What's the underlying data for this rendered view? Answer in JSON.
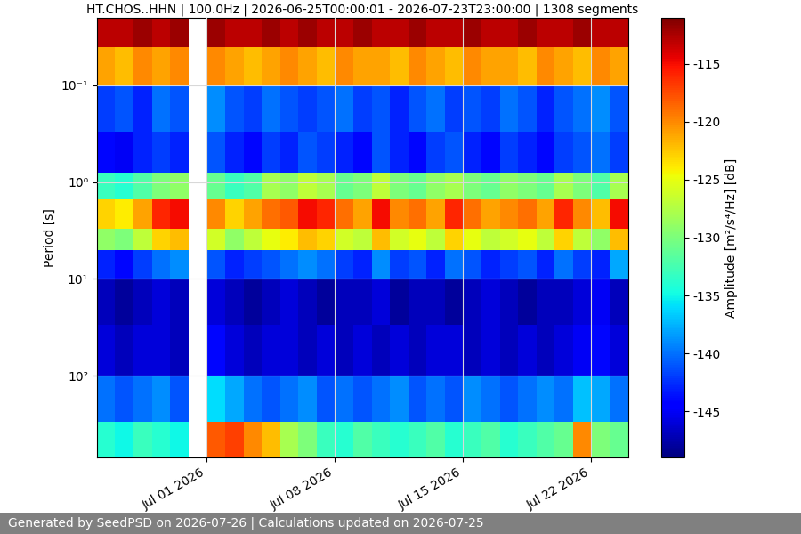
{
  "chart_data": {
    "type": "heatmap",
    "title": "HT.CHOS..HHN | 100.0Hz | 2026-06-25T00:00:01 - 2026-07-23T23:00:00 | 1308 segments",
    "y_label": "Period [s]",
    "colorbar_label": "Amplitude [m²/s⁴/Hz] [dB]",
    "footer": "Generated by SeedPSD on 2026-07-26 | Calculations updated on 2026-07-25",
    "color": "jet",
    "grid": true,
    "log": "y",
    "x_edges": [
      "2026-06-25",
      "2026-06-26",
      "2026-06-27",
      "2026-06-28",
      "2026-06-29",
      "2026-06-30",
      "2026-07-01",
      "2026-07-02",
      "2026-07-03",
      "2026-07-04",
      "2026-07-05",
      "2026-07-06",
      "2026-07-07",
      "2026-07-08",
      "2026-07-09",
      "2026-07-10",
      "2026-07-11",
      "2026-07-12",
      "2026-07-13",
      "2026-07-14",
      "2026-07-15",
      "2026-07-16",
      "2026-07-17",
      "2026-07-18",
      "2026-07-19",
      "2026-07-20",
      "2026-07-21",
      "2026-07-22",
      "2026-07-23",
      "2026-07-24"
    ],
    "period_edges": [
      0.02,
      0.04,
      0.1,
      0.3,
      0.8,
      1.5,
      3,
      5,
      10,
      30,
      100,
      300,
      700
    ],
    "cells": [
      [
        -113,
        -113,
        -112,
        -113,
        -112,
        null,
        -112,
        -113,
        -113,
        -112,
        -113,
        -112,
        -113,
        -113,
        -112,
        -113,
        -113,
        -112,
        -113,
        -113,
        -112,
        -113,
        -113,
        -112,
        -113,
        -113,
        -112,
        -113,
        -113
      ],
      [
        -121,
        -122,
        -120,
        -121,
        -120,
        null,
        -120,
        -121,
        -122,
        -121,
        -120,
        -121,
        -122,
        -120,
        -121,
        -121,
        -122,
        -120,
        -121,
        -122,
        -120,
        -121,
        -121,
        -122,
        -120,
        -121,
        -122,
        -120,
        -121
      ],
      [
        -142,
        -141,
        -143,
        -140,
        -141,
        null,
        -139,
        -141,
        -142,
        -140,
        -141,
        -142,
        -141,
        -140,
        -142,
        -141,
        -143,
        -141,
        -140,
        -142,
        -141,
        -142,
        -140,
        -141,
        -143,
        -141,
        -140,
        -139,
        -141
      ],
      [
        -144,
        -145,
        -143,
        -142,
        -143,
        null,
        -141,
        -143,
        -144,
        -142,
        -143,
        -141,
        -142,
        -143,
        -144,
        -141,
        -143,
        -144,
        -142,
        -141,
        -143,
        -144,
        -142,
        -143,
        -144,
        -142,
        -141,
        -140,
        -142
      ],
      [
        -133,
        -134,
        -132,
        -130,
        -129,
        null,
        -131,
        -133,
        -132,
        -128,
        -129,
        -127,
        -128,
        -131,
        -130,
        -127,
        -130,
        -131,
        -129,
        -128,
        -130,
        -131,
        -129,
        -130,
        -131,
        -128,
        -130,
        -132,
        -128
      ],
      [
        -123,
        -124,
        -121,
        -116,
        -115,
        null,
        -120,
        -123,
        -121,
        -119,
        -118,
        -115,
        -116,
        -119,
        -121,
        -115,
        -120,
        -119,
        -121,
        -116,
        -119,
        -121,
        -120,
        -119,
        -121,
        -116,
        -120,
        -122,
        -115
      ],
      [
        -129,
        -130,
        -127,
        -123,
        -122,
        null,
        -126,
        -129,
        -127,
        -125,
        -124,
        -122,
        -123,
        -126,
        -127,
        -122,
        -126,
        -125,
        -127,
        -123,
        -125,
        -127,
        -126,
        -125,
        -127,
        -123,
        -127,
        -129,
        -122
      ],
      [
        -143,
        -144,
        -142,
        -140,
        -139,
        null,
        -141,
        -143,
        -142,
        -141,
        -140,
        -139,
        -140,
        -142,
        -143,
        -139,
        -142,
        -141,
        -143,
        -140,
        -141,
        -143,
        -142,
        -141,
        -143,
        -140,
        -142,
        -143,
        -138
      ],
      [
        -147,
        -148,
        -147,
        -146,
        -147,
        null,
        -146,
        -147,
        -148,
        -147,
        -146,
        -147,
        -148,
        -147,
        -147,
        -146,
        -148,
        -147,
        -147,
        -148,
        -147,
        -146,
        -147,
        -148,
        -147,
        -147,
        -146,
        -145,
        -147
      ],
      [
        -146,
        -147,
        -146,
        -146,
        -147,
        null,
        -144,
        -146,
        -147,
        -146,
        -146,
        -147,
        -146,
        -147,
        -146,
        -147,
        -146,
        -147,
        -146,
        -146,
        -147,
        -146,
        -147,
        -146,
        -147,
        -146,
        -145,
        -144,
        -146
      ],
      [
        -140,
        -141,
        -140,
        -139,
        -141,
        null,
        -136,
        -138,
        -140,
        -141,
        -140,
        -139,
        -141,
        -140,
        -141,
        -140,
        -139,
        -141,
        -140,
        -141,
        -139,
        -140,
        -141,
        -140,
        -139,
        -140,
        -137,
        -138,
        -140
      ],
      [
        -134,
        -135,
        -133,
        -134,
        -135,
        null,
        -118,
        -117,
        -120,
        -122,
        -128,
        -130,
        -133,
        -134,
        -132,
        -133,
        -134,
        -133,
        -132,
        -134,
        -133,
        -132,
        -134,
        -133,
        -132,
        -131,
        -120,
        -130,
        -131
      ]
    ],
    "xlim": [
      "2026-06-25",
      "2026-07-24"
    ],
    "xticks": [
      {
        "value": "2026-07-01",
        "label": "Jul 01 2026"
      },
      {
        "value": "2026-07-08",
        "label": "Jul 08 2026"
      },
      {
        "value": "2026-07-15",
        "label": "Jul 15 2026"
      },
      {
        "value": "2026-07-22",
        "label": "Jul 22 2026"
      }
    ],
    "ylim": [
      700,
      0.02
    ],
    "yticks": [
      {
        "value": 0.1,
        "label": "10⁻¹"
      },
      {
        "value": 1,
        "label": "10⁰"
      },
      {
        "value": 10,
        "label": "10¹"
      },
      {
        "value": 100,
        "label": "10²"
      }
    ],
    "colorbar_lim": [
      -149,
      -111
    ],
    "colorbar_ticks": [
      -145,
      -140,
      -135,
      -130,
      -125,
      -120,
      -115
    ]
  }
}
